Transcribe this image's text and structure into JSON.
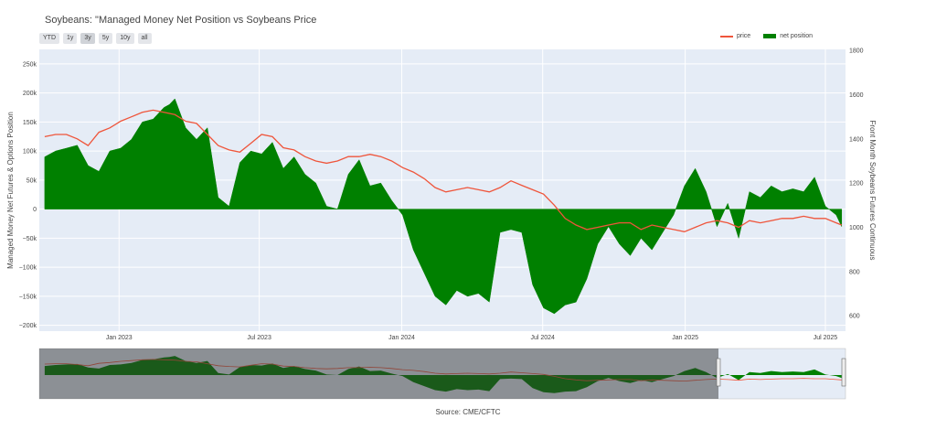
{
  "title": "Soybeans: \"Managed Money Net Position vs Soybeans Price",
  "range_buttons": [
    "YTD",
    "1y",
    "3y",
    "5y",
    "10y",
    "all"
  ],
  "active_range": "3y",
  "source": "Source: CME/CFTC",
  "colors": {
    "price": "#ef553b",
    "net": "#008000",
    "plot_bg": "#e5ecf6",
    "grid": "#ffffff"
  },
  "chart_data": {
    "type": "area",
    "x_ticks": [
      "Jan 2023",
      "Jul 2023",
      "Jan 2024",
      "Jul 2024",
      "Jan 2025",
      "Jul 2025"
    ],
    "ylabel_left": "Managed Money Net Futures & Options Position",
    "ylabel_right": "Front Month Soybeans Futures Continuous",
    "y_left_ticks": [
      "250k",
      "200k",
      "150k",
      "100k",
      "50k",
      "0",
      "−50k",
      "−100k",
      "−150k",
      "−200k"
    ],
    "y_right_ticks": [
      "1800",
      "1600",
      "1400",
      "1200",
      "1000",
      "800",
      "600"
    ],
    "y_left_range": [
      -210000,
      275000
    ],
    "y_right_range": [
      530,
      1805
    ],
    "legend": [
      "price",
      "net position"
    ],
    "legend_position": "top-right",
    "series": [
      {
        "name": "net position",
        "x": [
          "2022-09-27",
          "2022-10-11",
          "2022-10-25",
          "2022-11-08",
          "2022-11-22",
          "2022-12-06",
          "2022-12-20",
          "2023-01-03",
          "2023-01-17",
          "2023-01-31",
          "2023-02-14",
          "2023-02-28",
          "2023-03-07",
          "2023-03-14",
          "2023-03-28",
          "2023-04-11",
          "2023-04-25",
          "2023-05-09",
          "2023-05-23",
          "2023-06-06",
          "2023-06-20",
          "2023-07-04",
          "2023-07-18",
          "2023-08-01",
          "2023-08-15",
          "2023-08-29",
          "2023-09-12",
          "2023-09-26",
          "2023-10-10",
          "2023-10-24",
          "2023-11-07",
          "2023-11-21",
          "2023-12-05",
          "2023-12-19",
          "2024-01-02",
          "2024-01-16",
          "2024-01-30",
          "2024-02-13",
          "2024-02-27",
          "2024-03-12",
          "2024-03-26",
          "2024-04-09",
          "2024-04-23",
          "2024-05-07",
          "2024-05-21",
          "2024-06-04",
          "2024-06-18",
          "2024-07-02",
          "2024-07-16",
          "2024-07-30",
          "2024-08-13",
          "2024-08-27",
          "2024-09-10",
          "2024-09-24",
          "2024-10-08",
          "2024-10-22",
          "2024-11-05",
          "2024-11-19",
          "2024-12-03",
          "2024-12-17",
          "2024-12-31",
          "2025-01-14",
          "2025-01-28",
          "2025-02-11",
          "2025-02-25",
          "2025-03-11",
          "2025-03-25",
          "2025-04-08",
          "2025-04-22",
          "2025-05-06",
          "2025-05-20",
          "2025-06-03",
          "2025-06-17",
          "2025-07-01",
          "2025-07-15",
          "2025-07-22"
        ],
        "values": [
          90000,
          100000,
          105000,
          110000,
          75000,
          65000,
          100000,
          105000,
          120000,
          150000,
          155000,
          175000,
          180000,
          190000,
          140000,
          120000,
          140000,
          20000,
          5000,
          80000,
          100000,
          95000,
          115000,
          70000,
          90000,
          60000,
          45000,
          5000,
          0,
          60000,
          85000,
          40000,
          45000,
          15000,
          -10000,
          -70000,
          -110000,
          -150000,
          -165000,
          -140000,
          -150000,
          -145000,
          -160000,
          -40000,
          -35000,
          -40000,
          -130000,
          -170000,
          -180000,
          -165000,
          -160000,
          -120000,
          -60000,
          -30000,
          -60000,
          -80000,
          -50000,
          -70000,
          -40000,
          -10000,
          40000,
          70000,
          30000,
          -30000,
          10000,
          -50000,
          30000,
          20000,
          40000,
          30000,
          35000,
          30000,
          55000,
          5000,
          -10000,
          -30000
        ]
      },
      {
        "name": "price",
        "x": [
          "2022-09-27",
          "2022-10-11",
          "2022-10-25",
          "2022-11-08",
          "2022-11-22",
          "2022-12-06",
          "2022-12-20",
          "2023-01-03",
          "2023-01-17",
          "2023-01-31",
          "2023-02-14",
          "2023-02-28",
          "2023-03-14",
          "2023-03-28",
          "2023-04-11",
          "2023-04-25",
          "2023-05-09",
          "2023-05-23",
          "2023-06-06",
          "2023-06-20",
          "2023-07-04",
          "2023-07-18",
          "2023-08-01",
          "2023-08-15",
          "2023-08-29",
          "2023-09-12",
          "2023-09-26",
          "2023-10-10",
          "2023-10-24",
          "2023-11-07",
          "2023-11-21",
          "2023-12-05",
          "2023-12-19",
          "2024-01-02",
          "2024-01-16",
          "2024-01-30",
          "2024-02-13",
          "2024-02-27",
          "2024-03-12",
          "2024-03-26",
          "2024-04-09",
          "2024-04-23",
          "2024-05-07",
          "2024-05-21",
          "2024-06-04",
          "2024-06-18",
          "2024-07-02",
          "2024-07-16",
          "2024-07-30",
          "2024-08-13",
          "2024-08-27",
          "2024-09-10",
          "2024-09-24",
          "2024-10-08",
          "2024-10-22",
          "2024-11-05",
          "2024-11-19",
          "2024-12-03",
          "2024-12-17",
          "2024-12-31",
          "2025-01-14",
          "2025-01-28",
          "2025-02-11",
          "2025-02-25",
          "2025-03-11",
          "2025-03-25",
          "2025-04-08",
          "2025-04-22",
          "2025-05-06",
          "2025-05-20",
          "2025-06-03",
          "2025-06-17",
          "2025-07-01",
          "2025-07-15",
          "2025-07-22"
        ],
        "values": [
          1410,
          1420,
          1420,
          1400,
          1370,
          1430,
          1450,
          1480,
          1500,
          1520,
          1530,
          1520,
          1510,
          1480,
          1470,
          1420,
          1370,
          1350,
          1340,
          1380,
          1420,
          1410,
          1360,
          1350,
          1320,
          1300,
          1290,
          1300,
          1320,
          1320,
          1330,
          1320,
          1300,
          1270,
          1250,
          1220,
          1180,
          1160,
          1170,
          1180,
          1170,
          1160,
          1180,
          1210,
          1190,
          1170,
          1150,
          1100,
          1040,
          1010,
          990,
          1000,
          1010,
          1020,
          1020,
          990,
          1010,
          1000,
          990,
          980,
          1000,
          1020,
          1030,
          1020,
          1000,
          1030,
          1020,
          1030,
          1040,
          1040,
          1050,
          1040,
          1040,
          1020,
          1010
        ]
      }
    ]
  }
}
